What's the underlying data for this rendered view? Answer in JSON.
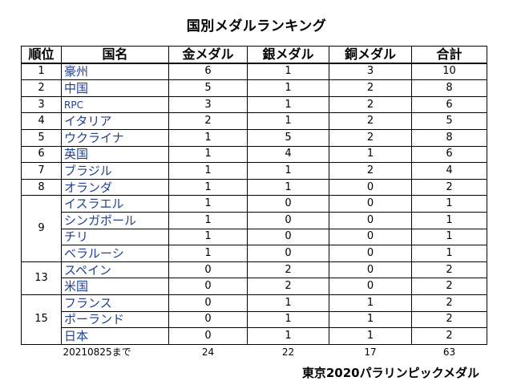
{
  "title": "国別メダルランキング",
  "headers": [
    "順位",
    "国名",
    "金メダル",
    "銀メダル",
    "銅メダル",
    "合計"
  ],
  "rows": [
    {
      "rank": "1",
      "country": "豪州",
      "gold": "6",
      "silver": "1",
      "bronze": "3",
      "total": "10"
    },
    {
      "rank": "2",
      "country": "中国",
      "gold": "5",
      "silver": "1",
      "bronze": "2",
      "total": "8"
    },
    {
      "rank": "3",
      "country": "RPC",
      "gold": "3",
      "silver": "1",
      "bronze": "2",
      "total": "6"
    },
    {
      "rank": "4",
      "country": "イタリア",
      "gold": "2",
      "silver": "1",
      "bronze": "2",
      "total": "5"
    },
    {
      "rank": "5",
      "country": "ウクライナ",
      "gold": "1",
      "silver": "5",
      "bronze": "2",
      "total": "8"
    },
    {
      "rank": "6",
      "country": "英国",
      "gold": "1",
      "silver": "4",
      "bronze": "1",
      "total": "6"
    },
    {
      "rank": "7",
      "country": "ブラジル",
      "gold": "1",
      "silver": "1",
      "bronze": "2",
      "total": "4"
    },
    {
      "rank": "8",
      "country": "オランダ",
      "gold": "1",
      "silver": "1",
      "bronze": "0",
      "total": "2"
    },
    {
      "rank": "9",
      "country": "イスラエル",
      "gold": "1",
      "silver": "0",
      "bronze": "0",
      "total": "1"
    },
    {
      "rank": "9",
      "country": "シンガポール",
      "gold": "1",
      "silver": "0",
      "bronze": "0",
      "total": "1"
    },
    {
      "rank": "9",
      "country": "チリ",
      "gold": "1",
      "silver": "0",
      "bronze": "0",
      "total": "1"
    },
    {
      "rank": "9",
      "country": "ベラルーシ",
      "gold": "1",
      "silver": "0",
      "bronze": "0",
      "total": "1"
    },
    {
      "rank": "13",
      "country": "スペイン",
      "gold": "0",
      "silver": "2",
      "bronze": "0",
      "total": "2"
    },
    {
      "rank": "13",
      "country": "米国",
      "gold": "0",
      "silver": "2",
      "bronze": "0",
      "total": "2"
    },
    {
      "rank": "15",
      "country": "フランス",
      "gold": "0",
      "silver": "1",
      "bronze": "1",
      "total": "2"
    },
    {
      "rank": "15",
      "country": "ポーランド",
      "gold": "0",
      "silver": "1",
      "bronze": "1",
      "total": "2"
    },
    {
      "rank": "15",
      "country": "日本",
      "gold": "0",
      "silver": "1",
      "bronze": "1",
      "total": "2"
    }
  ],
  "footer": {
    "note": "20210825まで",
    "gold": "24",
    "silver": "22",
    "bronze": "17",
    "total": "63"
  },
  "caption": "東京2020パラリンピックメダル",
  "colors": {
    "country_text": "#1f3f91",
    "border": "#000000"
  }
}
